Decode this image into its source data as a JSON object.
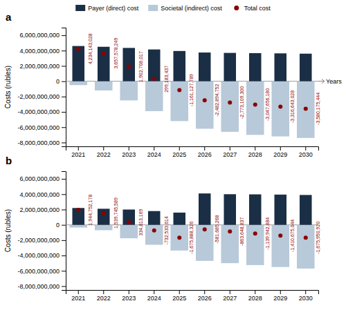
{
  "chart_data": [
    {
      "type": "bar",
      "title": "a",
      "ylabel": "Costs (rubles)",
      "annotations": [
        "Years"
      ],
      "legend": "top",
      "categories": [
        "2021",
        "2022",
        "2023",
        "2024",
        "2025",
        "2026",
        "2027",
        "2028",
        "2029",
        "2030"
      ],
      "series": [
        {
          "name": "Payer (direct) cost",
          "type": "bar",
          "color": "#1a2f45",
          "values": [
            4600000000,
            4500000000,
            4350000000,
            4150000000,
            3950000000,
            3750000000,
            3700000000,
            3670000000,
            3640000000,
            3600000000
          ]
        },
        {
          "name": "Societal (indirect) cost",
          "type": "bar",
          "color": "#b8c9d9",
          "values": [
            -500000000,
            -1200000000,
            -2500000000,
            -3900000000,
            -5200000000,
            -6200000000,
            -6600000000,
            -7000000000,
            -7200000000,
            -7400000000
          ]
        },
        {
          "name": "Total cost",
          "type": "scatter",
          "marker": "circle",
          "color": "#8b0000",
          "data_labels": true,
          "values": [
            4234143028,
            3657578249,
            1902708017,
            299183437,
            -1161127789,
            -2482894752,
            -2773109300,
            -3047656180,
            -3316643028,
            -3580175444
          ],
          "value_labels": [
            "4,234,143,028",
            "3,657,578,249",
            "1,902,708,017",
            "299,183,437",
            "-1,161,127,789",
            "-2,482,894,752",
            "-2,773,109,300",
            "-3,047,656,180",
            "-3,316,643,028",
            "-3,580,175,444"
          ]
        }
      ],
      "ylim": [
        -8500000000,
        7000000000
      ],
      "yticks": [
        {
          "value": -8000000000,
          "label": "-8,000,000,000"
        },
        {
          "value": -6000000000,
          "label": "-6,000,000,000"
        },
        {
          "value": -4000000000,
          "label": "-4,000,000,000"
        },
        {
          "value": -2000000000,
          "label": "-2,000,000,000"
        },
        0,
        {
          "value": 2000000000,
          "label": "2,000,000,000"
        },
        {
          "value": 4000000000,
          "label": "4,000,000,000"
        },
        {
          "value": 6000000000,
          "label": "6,000,000,000"
        }
      ]
    },
    {
      "type": "bar",
      "title": "b",
      "ylabel": "Costs (rubles)",
      "categories": [
        "2021",
        "2022",
        "2023",
        "2024",
        "2025",
        "2026",
        "2027",
        "2028",
        "2029",
        "2030"
      ],
      "series": [
        {
          "type": "bar",
          "color": "#1a2f45",
          "values": [
            2200000000,
            2100000000,
            2000000000,
            1800000000,
            1600000000,
            4100000000,
            4000000000,
            3980000000,
            3950000000,
            3900000000
          ]
        },
        {
          "type": "bar",
          "color": "#b8c9d9",
          "values": [
            -350000000,
            -700000000,
            -1750000000,
            -2600000000,
            -3350000000,
            -4700000000,
            -5000000000,
            -5250000000,
            -5500000000,
            -5700000000
          ]
        },
        {
          "type": "scatter",
          "marker": "circle",
          "color": "#8b0000",
          "data_labels": true,
          "values": [
            1944752178,
            1539745589,
            334813169,
            -732533614,
            -1675888326,
            -581685268,
            -863648837,
            -1139942884,
            -1410675044,
            -1675950920
          ],
          "value_labels": [
            "1,944,752,178",
            "1,539,745,589",
            "334,813,169",
            "-732,533,614",
            "-1,675,888,326",
            "-581,685,268",
            "-863,648,837",
            "-1,139,942,884",
            "-1,410,675,044",
            "-1,675,950,920"
          ]
        }
      ],
      "ylim": [
        -8500000000,
        7000000000
      ],
      "yticks": [
        {
          "value": -8000000000,
          "label": "-8,000,000,000"
        },
        {
          "value": -6000000000,
          "label": "-6,000,000,000"
        },
        {
          "value": -4000000000,
          "label": "-4,000,000,000"
        },
        {
          "value": -2000000000,
          "label": "-2,000,000,000"
        },
        0,
        {
          "value": 2000000000,
          "label": "2,000,000,000"
        },
        {
          "value": 4000000000,
          "label": "4,000,000,000"
        },
        {
          "value": 6000000000,
          "label": "6,000,000,000"
        }
      ]
    }
  ]
}
